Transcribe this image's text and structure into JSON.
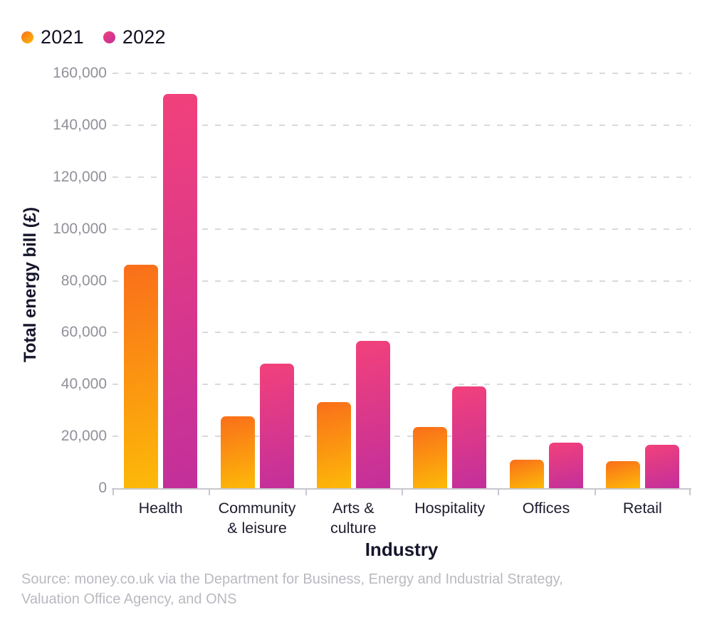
{
  "chart_data": {
    "type": "bar",
    "title": "",
    "categories": [
      "Health",
      "Community & leisure",
      "Arts & culture",
      "Hospitality",
      "Offices",
      "Retail"
    ],
    "category_wrap": [
      [
        "Health"
      ],
      [
        "Community",
        "& leisure"
      ],
      [
        "Arts &",
        "culture"
      ],
      [
        "Hospitality"
      ],
      [
        "Offices"
      ],
      [
        "Retail"
      ]
    ],
    "series": [
      {
        "name": "2021",
        "values": [
          86300,
          27600,
          33200,
          23600,
          10900,
          10400
        ],
        "color_start": "#FA6E1A",
        "color_end": "#FCBA08"
      },
      {
        "name": "2022",
        "values": [
          152000,
          48100,
          56700,
          39300,
          17700,
          16700
        ],
        "color_start": "#F2417B",
        "color_end": "#C22F9B"
      }
    ],
    "xlabel": "Industry",
    "ylabel": "Total energy bill (£)",
    "ylim": [
      0,
      160000
    ],
    "ytick_step": 20000,
    "ytick_labels": [
      "160,000",
      "140,000",
      "120,000",
      "100,000",
      "80,000",
      "60,000",
      "40,000",
      "20,000",
      "0"
    ],
    "grid": "horizontal dashed",
    "legend_position": "top-left",
    "colors": {
      "grid": "#D9D9DE",
      "axis": "#C7C7CE",
      "ytick_text": "#90909A",
      "category_text": "#1D1D2F",
      "title_text": "#15152B",
      "source_text": "#B9B9C0"
    }
  },
  "source": {
    "line1": "Source: money.co.uk via the Department for Business, Energy and Industrial Strategy,",
    "line2": "Valuation Office Agency, and ONS"
  }
}
